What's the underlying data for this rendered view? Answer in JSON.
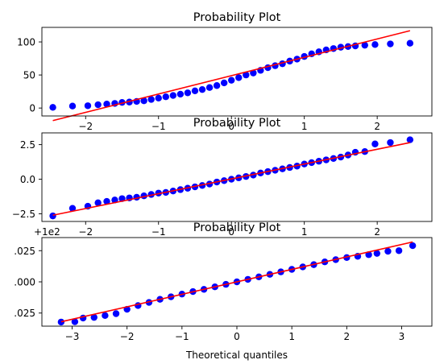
{
  "chart_data": [
    {
      "type": "scatter",
      "title": "Probability Plot",
      "xlabel": "",
      "ylabel": "",
      "offset_label": "",
      "xlim": [
        -2.6,
        2.75
      ],
      "ylim": [
        -12,
        122
      ],
      "xticks": [
        -2,
        -1,
        0,
        1,
        2
      ],
      "xtick_labels": [
        "−2",
        "−1",
        "0",
        "1",
        "2"
      ],
      "yticks": [
        0,
        50,
        100
      ],
      "ytick_labels": [
        "0",
        "50",
        "100"
      ],
      "grid": false,
      "marker_color": "#0000ff",
      "line_color": "#ff0000",
      "fit_line": {
        "x": [
          -2.45,
          2.45
        ],
        "y": [
          -19,
          117
        ]
      },
      "points": [
        [
          -2.45,
          1
        ],
        [
          -2.18,
          3
        ],
        [
          -1.97,
          3.5
        ],
        [
          -1.83,
          5
        ],
        [
          -1.71,
          6
        ],
        [
          -1.6,
          7
        ],
        [
          -1.5,
          8.5
        ],
        [
          -1.4,
          9
        ],
        [
          -1.3,
          10
        ],
        [
          -1.2,
          11
        ],
        [
          -1.1,
          13
        ],
        [
          -1.0,
          15
        ],
        [
          -0.9,
          17
        ],
        [
          -0.8,
          19
        ],
        [
          -0.7,
          21
        ],
        [
          -0.6,
          23
        ],
        [
          -0.5,
          26
        ],
        [
          -0.4,
          28
        ],
        [
          -0.3,
          31
        ],
        [
          -0.2,
          34
        ],
        [
          -0.1,
          38
        ],
        [
          0.0,
          42
        ],
        [
          0.1,
          46
        ],
        [
          0.2,
          50
        ],
        [
          0.3,
          53
        ],
        [
          0.4,
          57
        ],
        [
          0.5,
          61
        ],
        [
          0.6,
          64
        ],
        [
          0.7,
          67
        ],
        [
          0.8,
          71
        ],
        [
          0.9,
          74
        ],
        [
          1.0,
          78
        ],
        [
          1.1,
          82
        ],
        [
          1.2,
          85
        ],
        [
          1.3,
          88
        ],
        [
          1.4,
          90
        ],
        [
          1.5,
          92
        ],
        [
          1.6,
          93
        ],
        [
          1.7,
          94
        ],
        [
          1.83,
          95
        ],
        [
          1.97,
          96
        ],
        [
          2.18,
          97
        ],
        [
          2.45,
          98
        ]
      ]
    },
    {
      "type": "scatter",
      "title": "Probability Plot",
      "xlabel": "",
      "ylabel": "",
      "offset_label": "",
      "xlim": [
        -2.6,
        2.75
      ],
      "ylim": [
        -3.05,
        3.35
      ],
      "xticks": [
        -2,
        -1,
        0,
        1,
        2
      ],
      "xtick_labels": [
        "−2",
        "−1",
        "0",
        "1",
        "2"
      ],
      "yticks": [
        -2.5,
        0.0,
        2.5
      ],
      "ytick_labels": [
        "−2.5",
        "0.0",
        "2.5"
      ],
      "grid": false,
      "marker_color": "#0000ff",
      "line_color": "#ff0000",
      "fit_line": {
        "x": [
          -2.45,
          2.45
        ],
        "y": [
          -2.6,
          2.65
        ]
      },
      "points": [
        [
          -2.45,
          -2.65
        ],
        [
          -2.18,
          -2.1
        ],
        [
          -1.97,
          -1.95
        ],
        [
          -1.83,
          -1.7
        ],
        [
          -1.71,
          -1.6
        ],
        [
          -1.6,
          -1.5
        ],
        [
          -1.5,
          -1.4
        ],
        [
          -1.4,
          -1.35
        ],
        [
          -1.3,
          -1.3
        ],
        [
          -1.2,
          -1.2
        ],
        [
          -1.1,
          -1.1
        ],
        [
          -1.0,
          -1.0
        ],
        [
          -0.9,
          -0.95
        ],
        [
          -0.8,
          -0.85
        ],
        [
          -0.7,
          -0.75
        ],
        [
          -0.6,
          -0.65
        ],
        [
          -0.5,
          -0.55
        ],
        [
          -0.4,
          -0.45
        ],
        [
          -0.3,
          -0.35
        ],
        [
          -0.2,
          -0.2
        ],
        [
          -0.1,
          -0.1
        ],
        [
          0.0,
          0.0
        ],
        [
          0.1,
          0.1
        ],
        [
          0.2,
          0.2
        ],
        [
          0.3,
          0.3
        ],
        [
          0.4,
          0.45
        ],
        [
          0.5,
          0.55
        ],
        [
          0.6,
          0.65
        ],
        [
          0.7,
          0.75
        ],
        [
          0.8,
          0.85
        ],
        [
          0.9,
          0.95
        ],
        [
          1.0,
          1.1
        ],
        [
          1.1,
          1.2
        ],
        [
          1.2,
          1.3
        ],
        [
          1.3,
          1.4
        ],
        [
          1.4,
          1.5
        ],
        [
          1.5,
          1.6
        ],
        [
          1.6,
          1.75
        ],
        [
          1.7,
          1.95
        ],
        [
          1.83,
          2.0
        ],
        [
          1.97,
          2.55
        ],
        [
          2.18,
          2.65
        ],
        [
          2.45,
          2.85
        ]
      ]
    },
    {
      "type": "scatter",
      "title": "Probability Plot",
      "xlabel": "Theoretical quantiles",
      "ylabel": "",
      "offset_label": "+1e2",
      "xlim": [
        -3.55,
        3.55
      ],
      "ylim": [
        -0.0355,
        0.0355
      ],
      "xticks": [
        -3,
        -2,
        -1,
        0,
        1,
        2,
        3
      ],
      "xtick_labels": [
        "−3",
        "−2",
        "−1",
        "0",
        "1",
        "2",
        "3"
      ],
      "yticks": [
        -0.025,
        0.0,
        0.025
      ],
      "ytick_labels": [
        ".025",
        ".000",
        ".025"
      ],
      "grid": false,
      "marker_color": "#0000ff",
      "line_color": "#ff0000",
      "fit_line": {
        "x": [
          -3.2,
          3.2
        ],
        "y": [
          -0.032,
          0.032
        ]
      },
      "points": [
        [
          -3.2,
          -0.0322
        ],
        [
          -2.95,
          -0.032
        ],
        [
          -2.8,
          -0.029
        ],
        [
          -2.6,
          -0.0285
        ],
        [
          -2.4,
          -0.027
        ],
        [
          -2.2,
          -0.0255
        ],
        [
          -2.0,
          -0.022
        ],
        [
          -1.8,
          -0.019
        ],
        [
          -1.6,
          -0.0165
        ],
        [
          -1.4,
          -0.014
        ],
        [
          -1.2,
          -0.012
        ],
        [
          -1.0,
          -0.0098
        ],
        [
          -0.8,
          -0.0078
        ],
        [
          -0.6,
          -0.006
        ],
        [
          -0.4,
          -0.004
        ],
        [
          -0.2,
          -0.002
        ],
        [
          0.0,
          0.0
        ],
        [
          0.2,
          0.002
        ],
        [
          0.4,
          0.004
        ],
        [
          0.6,
          0.006
        ],
        [
          0.8,
          0.008
        ],
        [
          1.0,
          0.01
        ],
        [
          1.2,
          0.012
        ],
        [
          1.4,
          0.0138
        ],
        [
          1.6,
          0.016
        ],
        [
          1.8,
          0.0178
        ],
        [
          2.0,
          0.0195
        ],
        [
          2.2,
          0.0205
        ],
        [
          2.4,
          0.0218
        ],
        [
          2.55,
          0.0228
        ],
        [
          2.75,
          0.0245
        ],
        [
          2.95,
          0.025
        ],
        [
          3.2,
          0.029
        ]
      ]
    }
  ]
}
